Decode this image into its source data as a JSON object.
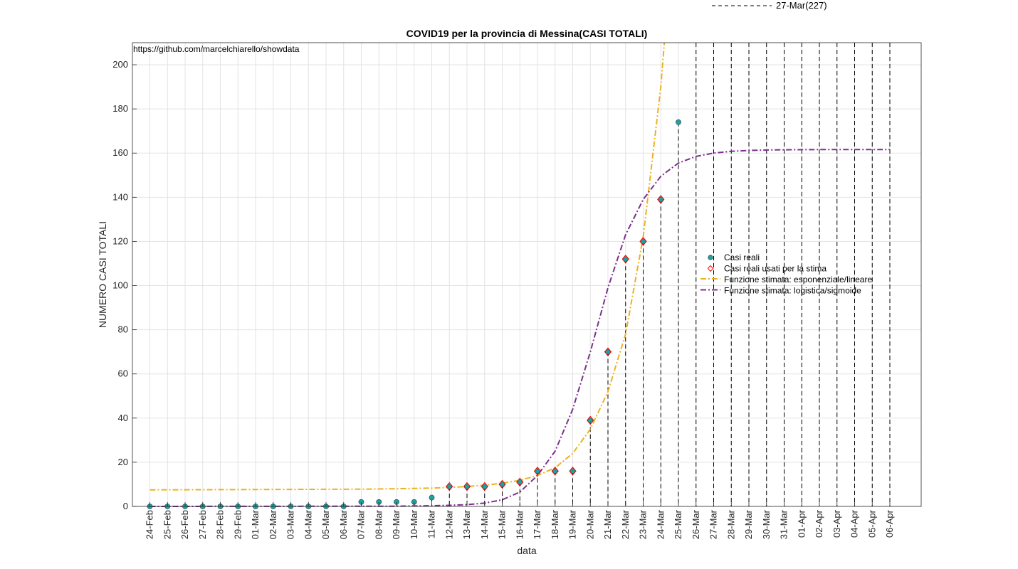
{
  "chart_data": {
    "type": "line",
    "title": "COVID19 per la provincia di Messina(CASI TOTALI)",
    "xlabel": "data",
    "ylabel": "NUMERO CASI TOTALI",
    "ylim": [
      0,
      210
    ],
    "yticks": [
      0,
      20,
      40,
      60,
      80,
      100,
      120,
      140,
      160,
      180,
      200
    ],
    "grid": true,
    "legend_position": "center-right",
    "source_text": "https://github.com/marcelchiarello/showdata",
    "top_annotation": "27-Mar(227)",
    "x_categories": [
      "24-Feb",
      "25-Feb",
      "26-Feb",
      "27-Feb",
      "28-Feb",
      "29-Feb",
      "01-Mar",
      "02-Mar",
      "03-Mar",
      "04-Mar",
      "05-Mar",
      "06-Mar",
      "07-Mar",
      "08-Mar",
      "09-Mar",
      "10-Mar",
      "11-Mar",
      "12-Mar",
      "13-Mar",
      "14-Mar",
      "15-Mar",
      "16-Mar",
      "17-Mar",
      "18-Mar",
      "19-Mar",
      "20-Mar",
      "21-Mar",
      "22-Mar",
      "23-Mar",
      "24-Mar",
      "25-Mar",
      "26-Mar",
      "27-Mar",
      "28-Mar",
      "29-Mar",
      "30-Mar",
      "31-Mar",
      "01-Apr",
      "02-Apr",
      "03-Apr",
      "04-Apr",
      "05-Apr",
      "06-Apr"
    ],
    "series": [
      {
        "name": "Casi reali",
        "kind": "scatter",
        "color": "#17a2a4",
        "x_index": [
          0,
          1,
          2,
          3,
          4,
          5,
          6,
          7,
          8,
          9,
          10,
          11,
          12,
          13,
          14,
          15,
          16,
          17,
          18,
          19,
          20,
          21,
          22,
          23,
          24,
          25,
          26,
          27,
          28,
          29,
          30
        ],
        "values": [
          0,
          0,
          0,
          0,
          0,
          0,
          0,
          0,
          0,
          0,
          0,
          0,
          2,
          2,
          2,
          2,
          4,
          9,
          9,
          9,
          10,
          11,
          16,
          16,
          16,
          39,
          70,
          112,
          120,
          139,
          174
        ]
      },
      {
        "name": "Casi reali usati per la stima",
        "kind": "scatter",
        "color": "#ff0000",
        "x_index": [
          17,
          18,
          19,
          20,
          21,
          22,
          23,
          24,
          25,
          26,
          27,
          28,
          29
        ],
        "values": [
          9,
          9,
          9,
          10,
          11,
          16,
          16,
          16,
          39,
          70,
          112,
          120,
          139
        ]
      },
      {
        "name": "Funzione stimata: esponenziale/lineare",
        "kind": "line",
        "color": "#edb120",
        "x_index": [
          0,
          4,
          8,
          12,
          14,
          16,
          17,
          18,
          19,
          20,
          21,
          22,
          23,
          24,
          25,
          26,
          27,
          28,
          29,
          29.2
        ],
        "values": [
          7.5,
          7.6,
          7.7,
          7.8,
          8.0,
          8.3,
          8.6,
          9.0,
          9.6,
          10.5,
          11.8,
          14.0,
          17.5,
          24.0,
          35.0,
          52.0,
          78.0,
          122.0,
          190.0,
          210.0
        ]
      },
      {
        "name": "Funzione stimata: logistica/sigmoide",
        "kind": "line",
        "color": "#7e2f8e",
        "x_index": [
          0,
          14,
          16,
          17,
          18,
          19,
          20,
          21,
          22,
          23,
          24,
          25,
          26,
          27,
          28,
          29,
          30,
          31,
          32,
          33,
          34,
          35,
          36,
          38,
          40,
          42
        ],
        "values": [
          0,
          0.1,
          0.3,
          0.5,
          0.8,
          1.5,
          3.0,
          6.5,
          14.0,
          25.0,
          44.0,
          70.0,
          99.0,
          123.0,
          139.0,
          149.5,
          155.5,
          158.5,
          160.0,
          160.8,
          161.2,
          161.4,
          161.5,
          161.6,
          161.6,
          161.6
        ]
      }
    ],
    "vertical_lines": {
      "style": "dashed",
      "color": "#000000",
      "full_height_x_index": [
        31,
        32
      ],
      "stem_x_index": [
        12,
        13,
        14,
        15,
        16,
        17,
        18,
        19,
        20,
        21,
        22,
        23,
        24,
        25,
        26,
        27,
        28,
        29,
        30,
        31,
        32,
        33,
        34,
        35,
        36,
        37,
        38,
        39,
        40,
        41,
        42
      ]
    }
  }
}
